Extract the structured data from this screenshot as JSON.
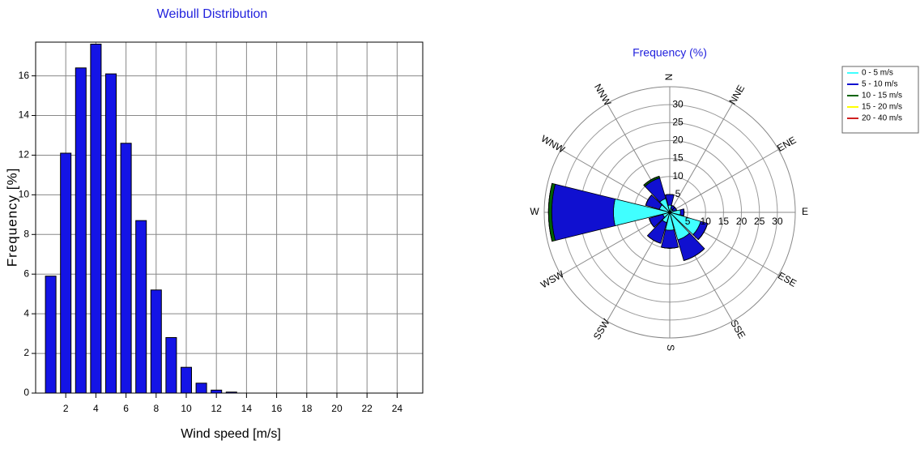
{
  "chart_data": [
    {
      "type": "bar",
      "title": "Weibull Distribution",
      "x_label": "Wind speed [m/s]",
      "y_label": "Frequency [%]",
      "x": [
        1,
        2,
        3,
        4,
        5,
        6,
        7,
        8,
        9,
        10,
        11,
        12,
        13
      ],
      "values": [
        5.9,
        12.1,
        16.4,
        17.6,
        16.1,
        12.6,
        8.7,
        5.2,
        2.8,
        1.3,
        0.5,
        0.15,
        0.05
      ],
      "color": "#1414e6",
      "xlim": [
        0,
        25.7
      ],
      "xticks": [
        2,
        4,
        6,
        8,
        10,
        12,
        14,
        16,
        18,
        20,
        22,
        24
      ],
      "ylim": [
        0,
        17.7
      ],
      "yticks": [
        0,
        2,
        4,
        6,
        8,
        10,
        12,
        14,
        16
      ],
      "grid": true
    },
    {
      "type": "windrose",
      "title": "Frequency (%)",
      "categories": [
        "N",
        "NNE",
        "ENE",
        "E",
        "ESE",
        "SSE",
        "S",
        "SSW",
        "WSW",
        "W",
        "WNW",
        "NNW"
      ],
      "series": [
        {
          "name": "0 - 5 m/s",
          "color": "#40ffff",
          "values": [
            2,
            1,
            1,
            3,
            9,
            8,
            5,
            3,
            2,
            15.7,
            3,
            4
          ]
        },
        {
          "name": "5 - 10 m/s",
          "color": "#1010d0",
          "values": [
            3,
            1,
            1,
            1,
            2,
            6,
            5,
            6,
            4,
            17.2,
            4,
            6
          ]
        },
        {
          "name": "10 - 15 m/s",
          "color": "#006400",
          "values": [
            0,
            0,
            0,
            0,
            0,
            0,
            0,
            0,
            0,
            0.9,
            0,
            0.5
          ]
        },
        {
          "name": "15 - 20 m/s",
          "color": "#ffff00",
          "values": [
            0,
            0,
            0,
            0,
            0,
            0,
            0,
            0,
            0,
            0,
            0,
            0
          ]
        },
        {
          "name": "20 - 40 m/s",
          "color": "#d02020",
          "values": [
            0,
            0,
            0,
            0,
            0,
            0,
            0,
            0,
            0,
            0,
            0,
            0
          ]
        }
      ],
      "rlim": [
        0,
        35
      ],
      "rticks": [
        5,
        10,
        15,
        20,
        25,
        30
      ],
      "grid": true,
      "legend": "upper right"
    }
  ]
}
